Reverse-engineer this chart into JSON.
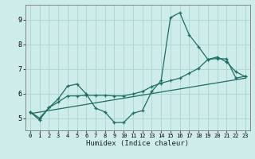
{
  "xlabel": "Humidex (Indice chaleur)",
  "bg_color": "#ceecea",
  "grid_color": "#aed8d4",
  "line_color": "#1e6e64",
  "xlim": [
    -0.5,
    23.5
  ],
  "ylim": [
    4.5,
    9.6
  ],
  "xticks": [
    0,
    1,
    2,
    3,
    4,
    5,
    6,
    7,
    8,
    9,
    10,
    11,
    12,
    13,
    14,
    15,
    16,
    17,
    18,
    19,
    20,
    21,
    22,
    23
  ],
  "yticks": [
    5,
    6,
    7,
    8,
    9
  ],
  "series1_x": [
    0,
    1,
    2,
    3,
    4,
    5,
    6,
    7,
    8,
    9,
    10,
    11,
    12,
    13,
    14,
    15,
    16,
    17,
    18,
    19,
    20,
    21,
    22,
    23
  ],
  "series1_y": [
    5.25,
    4.92,
    5.42,
    5.78,
    6.3,
    6.38,
    5.98,
    5.4,
    5.25,
    4.82,
    4.82,
    5.2,
    5.3,
    6.08,
    6.52,
    9.08,
    9.28,
    8.38,
    7.9,
    7.38,
    7.48,
    7.28,
    6.88,
    6.68
  ],
  "series2_x": [
    0,
    1,
    2,
    3,
    4,
    5,
    6,
    7,
    8,
    9,
    10,
    11,
    12,
    13,
    14,
    15,
    16,
    17,
    18,
    19,
    20,
    21,
    22,
    23
  ],
  "series2_y": [
    5.25,
    5.0,
    5.42,
    5.65,
    5.9,
    5.9,
    5.92,
    5.92,
    5.92,
    5.9,
    5.9,
    5.98,
    6.08,
    6.28,
    6.42,
    6.52,
    6.62,
    6.82,
    7.02,
    7.38,
    7.42,
    7.4,
    6.62,
    6.7
  ],
  "series3_x": [
    0,
    23
  ],
  "series3_y": [
    5.18,
    6.62
  ]
}
